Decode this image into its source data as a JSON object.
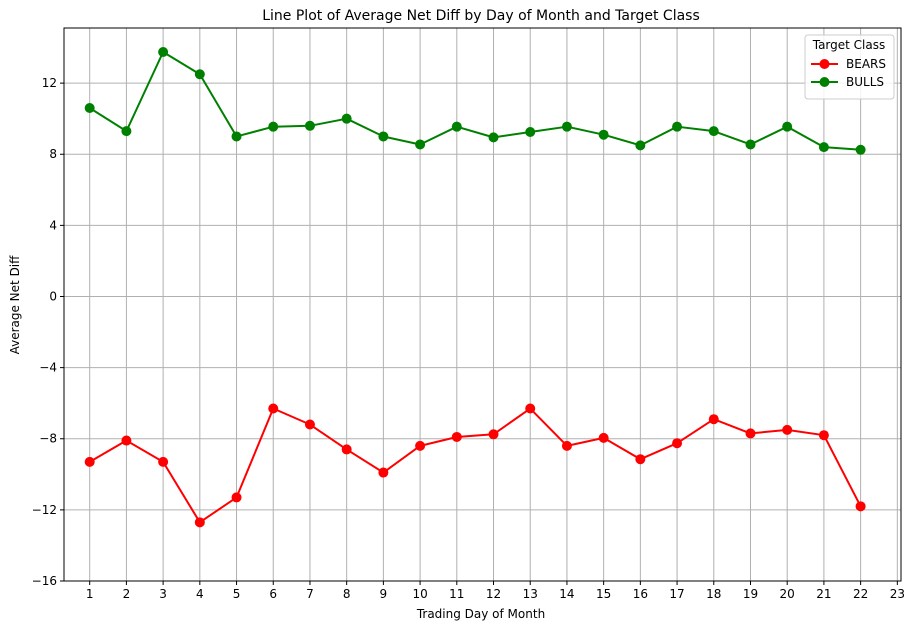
{
  "chart_data": {
    "type": "line",
    "title": "Line Plot of Average Net Diff by Day of Month and Target Class",
    "xlabel": "Trading Day of Month",
    "ylabel": "Average Net Diff",
    "x": [
      1,
      2,
      3,
      4,
      5,
      6,
      7,
      8,
      9,
      10,
      11,
      12,
      13,
      14,
      15,
      16,
      17,
      18,
      19,
      20,
      21,
      22
    ],
    "xticks": [
      "1",
      "2",
      "3",
      "4",
      "5",
      "6",
      "7",
      "8",
      "9",
      "10",
      "11",
      "12",
      "13",
      "14",
      "15",
      "16",
      "17",
      "18",
      "19",
      "20",
      "21",
      "22",
      "23"
    ],
    "xlim": [
      0.3,
      23.1
    ],
    "yticks": [
      -16,
      -12,
      -8,
      -4,
      0,
      4,
      8,
      12
    ],
    "ytick_labels": [
      "−16",
      "−12",
      "−8",
      "−4",
      "0",
      "4",
      "8",
      "12"
    ],
    "ylim": [
      -16,
      15.1
    ],
    "grid": true,
    "legend": {
      "title": "Target Class",
      "placement": "top-right"
    },
    "series": [
      {
        "name": "BEARS",
        "color": "#ff0000",
        "values": [
          -9.3,
          -8.1,
          -9.3,
          -12.7,
          -11.3,
          -6.3,
          -7.2,
          -8.6,
          -9.9,
          -8.4,
          -7.9,
          -7.75,
          -6.3,
          -8.4,
          -7.95,
          -9.15,
          -8.25,
          -6.9,
          -7.7,
          -7.5,
          -7.8,
          -11.8
        ]
      },
      {
        "name": "BULLS",
        "color": "#008000",
        "values": [
          10.6,
          9.3,
          13.75,
          12.5,
          9.0,
          9.55,
          9.6,
          10.0,
          9.0,
          8.55,
          9.55,
          8.95,
          9.25,
          9.55,
          9.1,
          8.5,
          9.55,
          9.3,
          8.55,
          9.55,
          8.4,
          8.25
        ]
      }
    ]
  }
}
